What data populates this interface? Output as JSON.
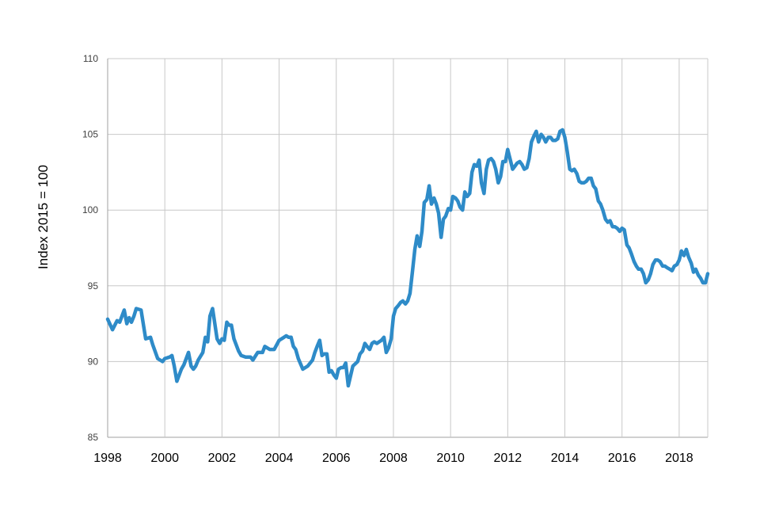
{
  "chart_data": {
    "type": "line",
    "title": "",
    "xlabel": "",
    "ylabel": "Index 2015 = 100",
    "xlim": [
      1998,
      2019
    ],
    "ylim": [
      85,
      110
    ],
    "x_ticks": [
      1998,
      2000,
      2002,
      2004,
      2006,
      2008,
      2010,
      2012,
      2014,
      2016,
      2018
    ],
    "x_tick_labels": [
      "1998",
      "2000",
      "2002",
      "2004",
      "2006",
      "2008",
      "2010",
      "2012",
      "2014",
      "2016",
      "2018"
    ],
    "y_ticks": [
      85,
      90,
      95,
      100,
      105,
      110
    ],
    "y_tick_labels": [
      "85",
      "90",
      "95",
      "100",
      "105",
      "110"
    ],
    "grid": true,
    "legend": "none",
    "series_color": "#2E8BC8",
    "series": [
      {
        "x": [
          1998.0,
          1998.17,
          1998.33,
          1998.42,
          1998.58,
          1998.67,
          1998.75,
          1998.83,
          1998.92,
          1999.0,
          1999.17,
          1999.33,
          1999.5,
          1999.58,
          1999.75,
          1999.92,
          2000.0,
          2000.17,
          2000.25,
          2000.33,
          2000.42,
          2000.58,
          2000.67,
          2000.83,
          2000.92,
          2001.0,
          2001.08,
          2001.17,
          2001.33,
          2001.42,
          2001.5,
          2001.58,
          2001.67,
          2001.83,
          2001.92,
          2002.0,
          2002.08,
          2002.17,
          2002.25,
          2002.33,
          2002.42,
          2002.58,
          2002.67,
          2002.83,
          2003.0,
          2003.08,
          2003.25,
          2003.42,
          2003.5,
          2003.67,
          2003.83,
          2004.0,
          2004.17,
          2004.25,
          2004.33,
          2004.42,
          2004.5,
          2004.58,
          2004.67,
          2004.83,
          2005.0,
          2005.17,
          2005.25,
          2005.33,
          2005.42,
          2005.5,
          2005.58,
          2005.67,
          2005.75,
          2005.83,
          2005.92,
          2006.0,
          2006.08,
          2006.17,
          2006.25,
          2006.33,
          2006.42,
          2006.58,
          2006.75,
          2006.83,
          2006.92,
          2007.0,
          2007.08,
          2007.17,
          2007.25,
          2007.33,
          2007.42,
          2007.5,
          2007.58,
          2007.67,
          2007.75,
          2007.83,
          2007.92,
          2008.0,
          2008.08,
          2008.17,
          2008.25,
          2008.33,
          2008.42,
          2008.5,
          2008.58,
          2008.67,
          2008.75,
          2008.83,
          2008.92,
          2009.0,
          2009.08,
          2009.17,
          2009.25,
          2009.33,
          2009.42,
          2009.5,
          2009.58,
          2009.67,
          2009.75,
          2009.83,
          2009.92,
          2010.0,
          2010.08,
          2010.17,
          2010.25,
          2010.33,
          2010.42,
          2010.5,
          2010.58,
          2010.67,
          2010.75,
          2010.83,
          2010.92,
          2011.0,
          2011.08,
          2011.17,
          2011.25,
          2011.33,
          2011.42,
          2011.5,
          2011.58,
          2011.67,
          2011.75,
          2011.83,
          2011.92,
          2012.0,
          2012.08,
          2012.17,
          2012.25,
          2012.33,
          2012.42,
          2012.5,
          2012.58,
          2012.67,
          2012.75,
          2012.83,
          2012.92,
          2013.0,
          2013.08,
          2013.17,
          2013.25,
          2013.33,
          2013.42,
          2013.5,
          2013.58,
          2013.67,
          2013.75,
          2013.83,
          2013.92,
          2014.0,
          2014.08,
          2014.17,
          2014.25,
          2014.33,
          2014.42,
          2014.5,
          2014.58,
          2014.67,
          2014.75,
          2014.83,
          2014.92,
          2015.0,
          2015.08,
          2015.17,
          2015.25,
          2015.33,
          2015.42,
          2015.5,
          2015.58,
          2015.67,
          2015.75,
          2015.83,
          2015.92,
          2016.0,
          2016.08,
          2016.17,
          2016.25,
          2016.33,
          2016.42,
          2016.5,
          2016.58,
          2016.67,
          2016.75,
          2016.83,
          2016.92,
          2017.0,
          2017.08,
          2017.17,
          2017.25,
          2017.33,
          2017.42,
          2017.5,
          2017.58,
          2017.67,
          2017.75,
          2017.83,
          2017.92,
          2018.0,
          2018.08,
          2018.17,
          2018.25,
          2018.33,
          2018.42,
          2018.5,
          2018.58,
          2018.67,
          2018.75,
          2018.83,
          2018.92,
          2019.0
        ],
        "values": [
          92.8,
          92.1,
          92.7,
          92.6,
          93.4,
          92.5,
          92.9,
          92.6,
          93.0,
          93.5,
          93.4,
          91.5,
          91.6,
          91.1,
          90.2,
          90.0,
          90.2,
          90.3,
          90.4,
          89.7,
          88.7,
          89.5,
          89.8,
          90.6,
          89.7,
          89.5,
          89.7,
          90.1,
          90.6,
          91.6,
          91.3,
          93.0,
          93.5,
          91.5,
          91.2,
          91.5,
          91.4,
          92.6,
          92.4,
          92.4,
          91.5,
          90.7,
          90.4,
          90.3,
          90.3,
          90.1,
          90.6,
          90.6,
          91.0,
          90.8,
          90.8,
          91.4,
          91.6,
          91.7,
          91.6,
          91.6,
          91.0,
          90.8,
          90.2,
          89.5,
          89.7,
          90.1,
          90.6,
          91.0,
          91.4,
          90.4,
          90.5,
          90.5,
          89.3,
          89.4,
          89.1,
          88.9,
          89.5,
          89.6,
          89.6,
          89.9,
          88.4,
          89.7,
          90.0,
          90.5,
          90.7,
          91.2,
          91.0,
          90.8,
          91.2,
          91.3,
          91.2,
          91.3,
          91.4,
          91.6,
          90.6,
          90.9,
          91.5,
          93.0,
          93.5,
          93.7,
          93.9,
          94.0,
          93.8,
          94.0,
          94.5,
          96.0,
          97.4,
          98.3,
          97.6,
          98.6,
          100.5,
          100.7,
          101.6,
          100.4,
          100.8,
          100.4,
          99.8,
          98.2,
          99.4,
          99.6,
          100.1,
          100.0,
          100.9,
          100.8,
          100.6,
          100.2,
          100.0,
          101.2,
          100.9,
          101.1,
          102.5,
          103.0,
          102.9,
          103.3,
          101.8,
          101.1,
          102.7,
          103.3,
          103.4,
          103.2,
          102.7,
          101.8,
          102.2,
          103.2,
          103.2,
          104.0,
          103.4,
          102.7,
          102.9,
          103.1,
          103.2,
          103.0,
          102.7,
          102.8,
          103.4,
          104.5,
          104.9,
          105.2,
          104.5,
          105.0,
          104.8,
          104.5,
          104.8,
          104.8,
          104.6,
          104.6,
          104.7,
          105.2,
          105.3,
          104.8,
          103.9,
          102.7,
          102.6,
          102.7,
          102.4,
          101.9,
          101.8,
          101.8,
          101.9,
          102.1,
          102.1,
          101.6,
          101.4,
          100.6,
          100.4,
          100.0,
          99.4,
          99.2,
          99.3,
          98.9,
          98.9,
          98.8,
          98.6,
          98.8,
          98.7,
          97.7,
          97.5,
          97.1,
          96.6,
          96.3,
          96.1,
          96.1,
          95.8,
          95.2,
          95.4,
          95.8,
          96.4,
          96.7,
          96.7,
          96.6,
          96.3,
          96.3,
          96.2,
          96.1,
          96.0,
          96.3,
          96.4,
          96.7,
          97.3,
          97.0,
          97.4,
          96.9,
          96.5,
          95.9,
          96.1,
          95.7,
          95.5,
          95.2,
          95.2,
          95.8
        ]
      }
    ]
  }
}
